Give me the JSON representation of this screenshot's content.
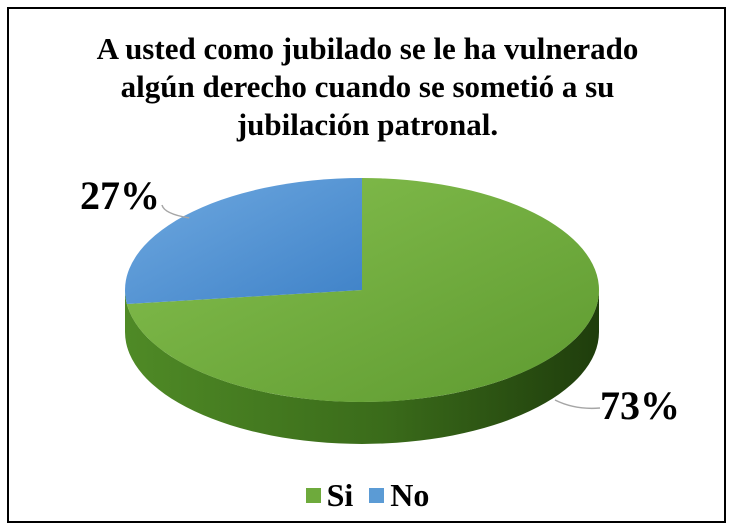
{
  "chart_data": {
    "type": "pie",
    "title_lines": [
      "A usted como jubilado se le ha vulnerado",
      "algún derecho cuando se sometió a su",
      "jubilación patronal."
    ],
    "categories": [
      "Si",
      "No"
    ],
    "values": [
      73,
      27
    ],
    "data_labels": [
      "73%",
      "27%"
    ],
    "colors": [
      "#6eaa3c",
      "#5b9bd5"
    ],
    "legend_position": "bottom",
    "style": "3d"
  }
}
